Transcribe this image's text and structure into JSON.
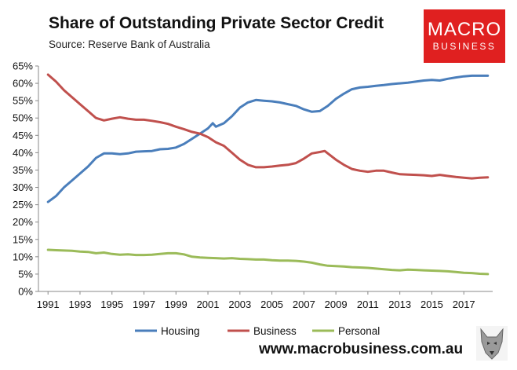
{
  "header": {
    "title": "Share of Outstanding Private Sector Credit",
    "subtitle": "Source: Reserve Bank of Australia"
  },
  "logo": {
    "line1": "MACRO",
    "line2": "BUSINESS",
    "color": "#e02020"
  },
  "footer": {
    "website": "www.macrobusiness.com.au"
  },
  "chart_data": {
    "type": "line",
    "title": "Share of Outstanding Private Sector Credit",
    "xlabel": "",
    "ylabel": "",
    "xlim": [
      1991,
      2018.8
    ],
    "ylim": [
      0,
      65
    ],
    "y_ticks": [
      0,
      5,
      10,
      15,
      20,
      25,
      30,
      35,
      40,
      45,
      50,
      55,
      60,
      65
    ],
    "y_tick_labels": [
      "0%",
      "5%",
      "10%",
      "15%",
      "20%",
      "25%",
      "30%",
      "35%",
      "40%",
      "45%",
      "50%",
      "55%",
      "60%",
      "65%"
    ],
    "x_ticks": [
      1991,
      1993,
      1995,
      1997,
      1999,
      2001,
      2003,
      2005,
      2007,
      2009,
      2011,
      2013,
      2015,
      2017
    ],
    "x_tick_labels": [
      "1991",
      "1993",
      "1995",
      "1997",
      "1999",
      "2001",
      "2003",
      "2005",
      "2007",
      "2009",
      "2011",
      "2013",
      "2015",
      "2017"
    ],
    "grid": false,
    "legend_position": "bottom",
    "series": [
      {
        "name": "Housing",
        "color": "#4a7ebb",
        "points": [
          [
            1991,
            25.8
          ],
          [
            1991.5,
            27.5
          ],
          [
            1992,
            30
          ],
          [
            1992.5,
            32
          ],
          [
            1993,
            34
          ],
          [
            1993.5,
            36
          ],
          [
            1994,
            38.5
          ],
          [
            1994.5,
            39.8
          ],
          [
            1995,
            39.8
          ],
          [
            1995.5,
            39.6
          ],
          [
            1996,
            39.8
          ],
          [
            1996.5,
            40.3
          ],
          [
            1997,
            40.4
          ],
          [
            1997.5,
            40.5
          ],
          [
            1998,
            41
          ],
          [
            1998.5,
            41.1
          ],
          [
            1999,
            41.5
          ],
          [
            1999.5,
            42.5
          ],
          [
            2000,
            44
          ],
          [
            2000.5,
            45.5
          ],
          [
            2001,
            47
          ],
          [
            2001.3,
            48.5
          ],
          [
            2001.5,
            47.5
          ],
          [
            2002,
            48.5
          ],
          [
            2002.5,
            50.5
          ],
          [
            2003,
            53
          ],
          [
            2003.5,
            54.5
          ],
          [
            2004,
            55.2
          ],
          [
            2004.5,
            55
          ],
          [
            2005,
            54.8
          ],
          [
            2005.5,
            54.5
          ],
          [
            2006,
            54
          ],
          [
            2006.5,
            53.5
          ],
          [
            2007,
            52.5
          ],
          [
            2007.5,
            51.8
          ],
          [
            2008,
            52
          ],
          [
            2008.5,
            53.5
          ],
          [
            2009,
            55.5
          ],
          [
            2009.5,
            57
          ],
          [
            2010,
            58.3
          ],
          [
            2010.5,
            58.8
          ],
          [
            2011,
            59
          ],
          [
            2011.5,
            59.3
          ],
          [
            2012,
            59.5
          ],
          [
            2012.5,
            59.8
          ],
          [
            2013,
            60
          ],
          [
            2013.5,
            60.2
          ],
          [
            2014,
            60.5
          ],
          [
            2014.5,
            60.8
          ],
          [
            2015,
            61
          ],
          [
            2015.5,
            60.8
          ],
          [
            2016,
            61.3
          ],
          [
            2016.5,
            61.7
          ],
          [
            2017,
            62
          ],
          [
            2017.5,
            62.2
          ],
          [
            2018,
            62.2
          ],
          [
            2018.5,
            62.2
          ]
        ]
      },
      {
        "name": "Business",
        "color": "#c0504d",
        "points": [
          [
            1991,
            62.5
          ],
          [
            1991.5,
            60.5
          ],
          [
            1992,
            58
          ],
          [
            1992.5,
            56
          ],
          [
            1993,
            54
          ],
          [
            1993.5,
            52
          ],
          [
            1994,
            50
          ],
          [
            1994.5,
            49.3
          ],
          [
            1995,
            49.8
          ],
          [
            1995.5,
            50.2
          ],
          [
            1996,
            49.8
          ],
          [
            1996.5,
            49.5
          ],
          [
            1997,
            49.5
          ],
          [
            1997.5,
            49.2
          ],
          [
            1998,
            48.8
          ],
          [
            1998.5,
            48.3
          ],
          [
            1999,
            47.5
          ],
          [
            1999.5,
            46.8
          ],
          [
            2000,
            46
          ],
          [
            2000.5,
            45.5
          ],
          [
            2001,
            44.5
          ],
          [
            2001.5,
            43
          ],
          [
            2002,
            42
          ],
          [
            2002.5,
            40
          ],
          [
            2003,
            38
          ],
          [
            2003.5,
            36.5
          ],
          [
            2004,
            35.8
          ],
          [
            2004.5,
            35.8
          ],
          [
            2005,
            36
          ],
          [
            2005.5,
            36.3
          ],
          [
            2006,
            36.5
          ],
          [
            2006.5,
            37
          ],
          [
            2007,
            38.3
          ],
          [
            2007.5,
            39.8
          ],
          [
            2008,
            40.2
          ],
          [
            2008.3,
            40.5
          ],
          [
            2008.5,
            39.8
          ],
          [
            2009,
            38
          ],
          [
            2009.5,
            36.5
          ],
          [
            2010,
            35.3
          ],
          [
            2010.5,
            34.8
          ],
          [
            2011,
            34.5
          ],
          [
            2011.5,
            34.8
          ],
          [
            2012,
            34.8
          ],
          [
            2012.5,
            34.3
          ],
          [
            2013,
            33.8
          ],
          [
            2013.5,
            33.7
          ],
          [
            2014,
            33.6
          ],
          [
            2014.5,
            33.5
          ],
          [
            2015,
            33.3
          ],
          [
            2015.5,
            33.6
          ],
          [
            2016,
            33.3
          ],
          [
            2016.5,
            33
          ],
          [
            2017,
            32.8
          ],
          [
            2017.5,
            32.6
          ],
          [
            2018,
            32.8
          ],
          [
            2018.5,
            32.9
          ]
        ]
      },
      {
        "name": "Personal",
        "color": "#9bbb59",
        "points": [
          [
            1991,
            12
          ],
          [
            1991.5,
            11.9
          ],
          [
            1992,
            11.8
          ],
          [
            1992.5,
            11.7
          ],
          [
            1993,
            11.5
          ],
          [
            1993.5,
            11.4
          ],
          [
            1994,
            11
          ],
          [
            1994.5,
            11.2
          ],
          [
            1995,
            10.8
          ],
          [
            1995.5,
            10.6
          ],
          [
            1996,
            10.7
          ],
          [
            1996.5,
            10.5
          ],
          [
            1997,
            10.5
          ],
          [
            1997.5,
            10.6
          ],
          [
            1998,
            10.8
          ],
          [
            1998.5,
            11
          ],
          [
            1999,
            11
          ],
          [
            1999.5,
            10.7
          ],
          [
            2000,
            10
          ],
          [
            2000.5,
            9.8
          ],
          [
            2001,
            9.7
          ],
          [
            2001.5,
            9.6
          ],
          [
            2002,
            9.5
          ],
          [
            2002.5,
            9.6
          ],
          [
            2003,
            9.4
          ],
          [
            2003.5,
            9.3
          ],
          [
            2004,
            9.2
          ],
          [
            2004.5,
            9.2
          ],
          [
            2005,
            9
          ],
          [
            2005.5,
            8.9
          ],
          [
            2006,
            8.9
          ],
          [
            2006.5,
            8.8
          ],
          [
            2007,
            8.6
          ],
          [
            2007.5,
            8.3
          ],
          [
            2008,
            7.8
          ],
          [
            2008.5,
            7.4
          ],
          [
            2009,
            7.3
          ],
          [
            2009.5,
            7.2
          ],
          [
            2010,
            7
          ],
          [
            2010.5,
            6.9
          ],
          [
            2011,
            6.8
          ],
          [
            2011.5,
            6.6
          ],
          [
            2012,
            6.4
          ],
          [
            2012.5,
            6.2
          ],
          [
            2013,
            6.1
          ],
          [
            2013.5,
            6.3
          ],
          [
            2014,
            6.2
          ],
          [
            2014.5,
            6.1
          ],
          [
            2015,
            6
          ],
          [
            2015.5,
            5.9
          ],
          [
            2016,
            5.8
          ],
          [
            2016.5,
            5.6
          ],
          [
            2017,
            5.4
          ],
          [
            2017.5,
            5.3
          ],
          [
            2018,
            5.1
          ],
          [
            2018.5,
            5
          ]
        ]
      }
    ]
  }
}
